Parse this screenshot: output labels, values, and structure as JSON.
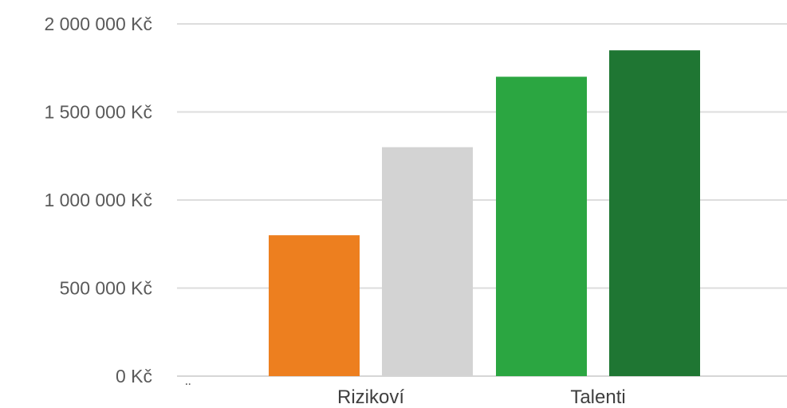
{
  "chart_data": {
    "type": "bar",
    "title": "",
    "xlabel": "",
    "ylabel": "",
    "ylim": [
      0,
      2000000
    ],
    "yticks": [
      0,
      500000,
      1000000,
      1500000,
      2000000
    ],
    "ytick_labels": [
      "0 Kč",
      "500 000 Kč",
      "1 000 000 Kč",
      "1 500 000 Kč",
      "2 000 000 Kč"
    ],
    "grid": true,
    "legend": "none",
    "extra_axis_mark": "¨",
    "categories": [
      "Rizikoví",
      "Talenti"
    ],
    "bars": [
      {
        "category": "Rizikoví",
        "value": 800000,
        "color": "#ED7F1F"
      },
      {
        "category": "Rizikoví",
        "value": 1300000,
        "color": "#D3D3D3"
      },
      {
        "category": "Talenti",
        "value": 1700000,
        "color": "#2BA641"
      },
      {
        "category": "Talenti",
        "value": 1850000,
        "color": "#1F7633"
      }
    ]
  }
}
